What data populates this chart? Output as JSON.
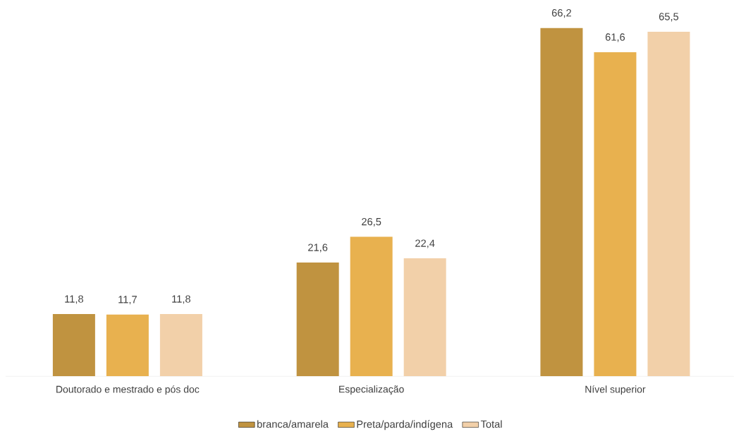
{
  "chart_data": {
    "type": "bar",
    "categories": [
      "Doutorado e mestrado e pós doc",
      "Especialização",
      "Nível superior"
    ],
    "series": [
      {
        "name": "branca/amarela",
        "color": "#c09340",
        "values": [
          11.8,
          21.6,
          66.2
        ],
        "value_labels": [
          "11,8",
          "21,6",
          "66,2"
        ]
      },
      {
        "name": "Preta/parda/indígena",
        "color": "#e8b14f",
        "values": [
          11.7,
          26.5,
          61.6
        ],
        "value_labels": [
          "11,7",
          "26,5",
          "61,6"
        ]
      },
      {
        "name": "Total",
        "color": "#f2d0a9",
        "values": [
          11.8,
          22.4,
          65.5
        ],
        "value_labels": [
          "11,8",
          "22,4",
          "65,5"
        ]
      }
    ],
    "tick_labels": "x",
    "legend": "bottom"
  }
}
